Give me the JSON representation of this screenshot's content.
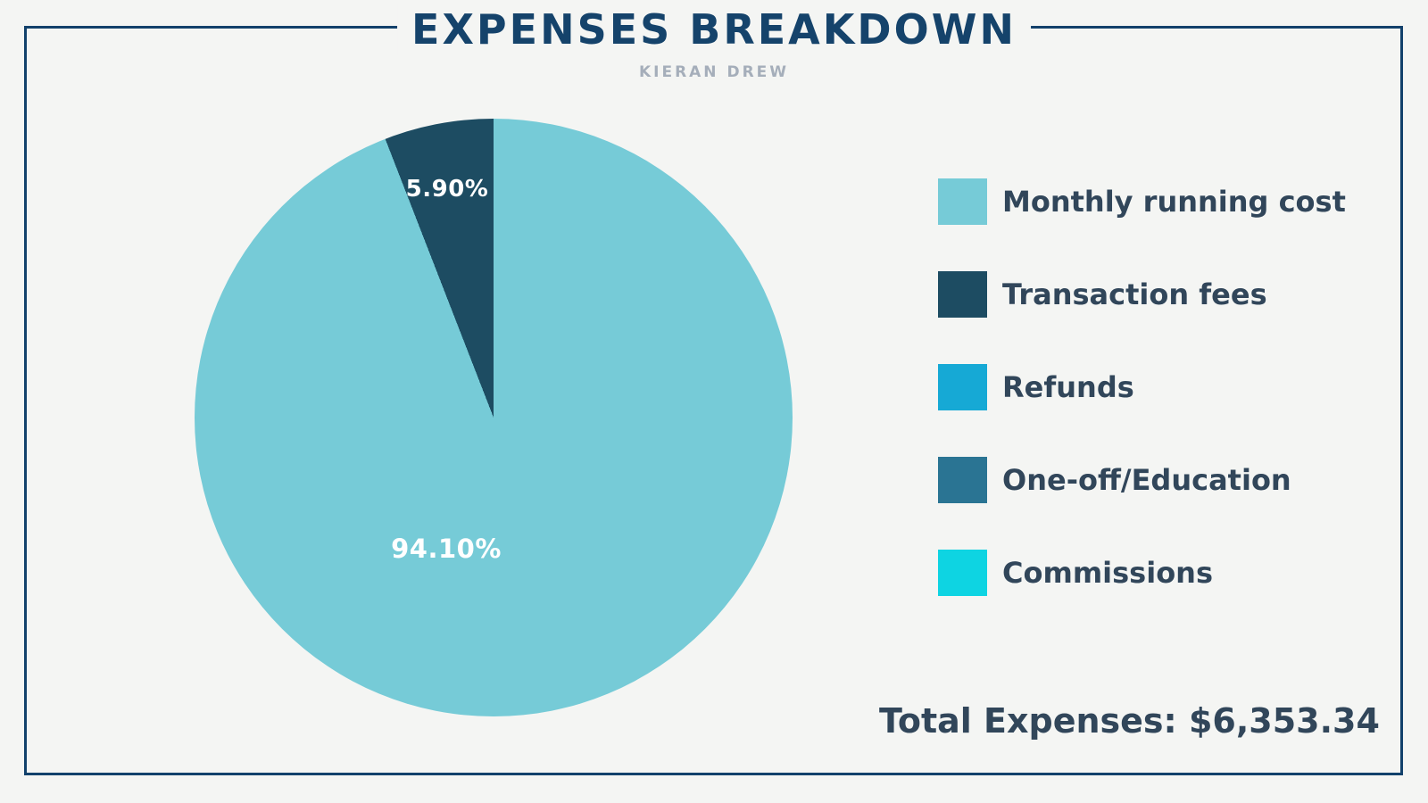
{
  "page": {
    "title": "EXPENSES BREAKDOWN",
    "subtitle": "KIERAN DREW",
    "total_label": "Total Expenses: $6,353.34"
  },
  "colors": {
    "background": "#F4F5F3",
    "frame_border": "#12416B",
    "title_text": "#15436B",
    "subtitle_text": "#A5AEBA",
    "body_text": "#31465A",
    "pie_label_text": "#FFFFFF"
  },
  "chart_data": {
    "type": "pie",
    "title": "EXPENSES BREAKDOWN",
    "subtitle": "KIERAN DREW",
    "legend_position": "right",
    "start_angle_deg": 0,
    "direction": "clockwise",
    "series": [
      {
        "label": "Monthly running cost",
        "percent": 94.1,
        "data_label": "94.10%",
        "color": "#76CBD7"
      },
      {
        "label": "Transaction fees",
        "percent": 5.9,
        "data_label": "5.90%",
        "color": "#1D4C62"
      },
      {
        "label": "Refunds",
        "percent": 0,
        "data_label": "",
        "color": "#16A9D5"
      },
      {
        "label": "One-off/Education",
        "percent": 0,
        "data_label": "",
        "color": "#2A7493"
      },
      {
        "label": "Commissions",
        "percent": 0,
        "data_label": "",
        "color": "#0ED4E2"
      }
    ],
    "annotations": [
      "94.10%",
      "5.90%"
    ],
    "total_label": "Total Expenses: $6,353.34"
  }
}
